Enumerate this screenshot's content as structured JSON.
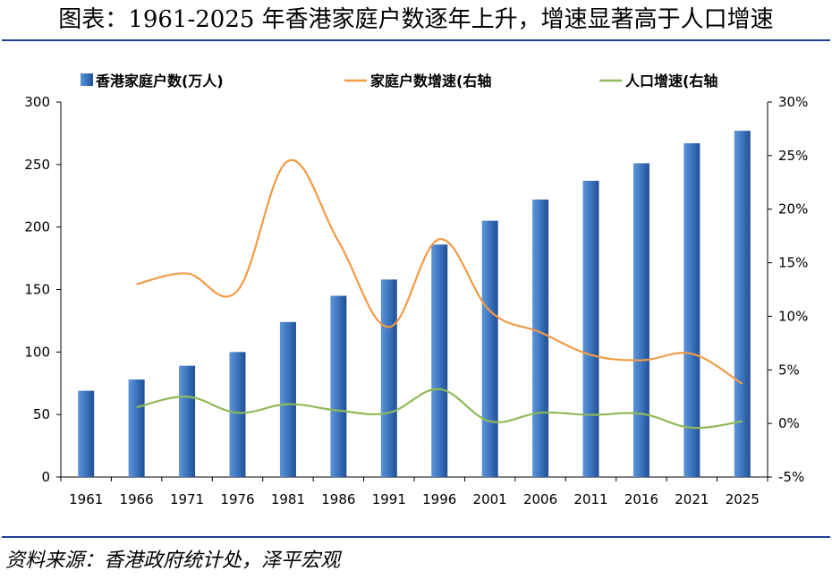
{
  "title": "图表：1961-2025 年香港家庭户数逐年上升，增速显著高于人口增速",
  "source": "资料来源：香港政府统计处，泽平宏观",
  "colors": {
    "bars": "#3f78c2",
    "household_growth": "#f39a45",
    "population_growth": "#8fba57",
    "rule": "#1f3f93"
  },
  "chart_data": {
    "type": "bar",
    "title": "图表：1961-2025 年香港家庭户数逐年上升，增速显著高于人口增速",
    "categories": [
      "1961",
      "1966",
      "1971",
      "1976",
      "1981",
      "1986",
      "1991",
      "1996",
      "2001",
      "2006",
      "2011",
      "2016",
      "2021",
      "2025"
    ],
    "series": [
      {
        "name": "香港家庭户数(万人)",
        "type": "bar",
        "axis": "left",
        "values": [
          69,
          78,
          89,
          100,
          124,
          145,
          158,
          186,
          205,
          222,
          237,
          251,
          267,
          277
        ]
      },
      {
        "name": "家庭户数增速(右轴",
        "type": "line",
        "axis": "right",
        "values": [
          null,
          13.0,
          14.0,
          12.4,
          24.5,
          17.0,
          9.0,
          17.2,
          10.5,
          8.5,
          6.4,
          5.9,
          6.5,
          3.7
        ]
      },
      {
        "name": "人口增速(右轴",
        "type": "line",
        "axis": "right",
        "values": [
          null,
          1.5,
          2.5,
          1.0,
          1.8,
          1.2,
          1.0,
          3.2,
          0.2,
          1.0,
          0.8,
          0.9,
          -0.4,
          0.2
        ]
      }
    ],
    "left_axis": {
      "ylim": [
        0,
        300
      ],
      "ticks": [
        "0",
        "50",
        "100",
        "150",
        "200",
        "250",
        "300"
      ]
    },
    "right_axis": {
      "ylim": [
        -5,
        30
      ],
      "ticks": [
        "-5%",
        "0%",
        "5%",
        "10%",
        "15%",
        "20%",
        "25%",
        "30%"
      ]
    },
    "legend_position": "top",
    "grid": false
  }
}
